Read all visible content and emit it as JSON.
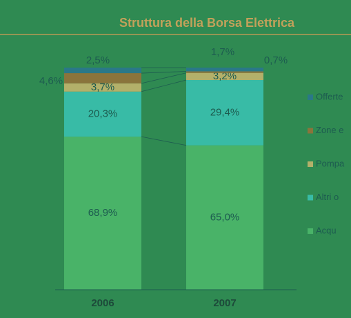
{
  "chart_data": {
    "type": "stacked-bar",
    "title": "Struttura della Borsa Elettrica",
    "categories": [
      "2006",
      "2007"
    ],
    "series": [
      {
        "name": "Acqu",
        "color": "#49b368",
        "values": [
          68.9,
          65.0
        ],
        "value_labels": [
          "68,9%",
          "65,0%"
        ]
      },
      {
        "name": "Altri o",
        "color": "#38bba6",
        "values": [
          20.3,
          29.4
        ],
        "value_labels": [
          "20,3%",
          "29,4%"
        ]
      },
      {
        "name": "Pompa",
        "color": "#b3b06a",
        "values": [
          3.7,
          3.2
        ],
        "value_labels": [
          "3,7%",
          "3,2%"
        ]
      },
      {
        "name": "Zone e",
        "color": "#8a743c",
        "values": [
          4.6,
          0.7
        ],
        "value_labels": [
          "4,6%",
          "0,7%"
        ]
      },
      {
        "name": "Offerte",
        "color": "#2a7888",
        "values": [
          2.5,
          1.7
        ],
        "value_labels": [
          "2,5%",
          "1,7%"
        ]
      }
    ],
    "legend": "right"
  }
}
